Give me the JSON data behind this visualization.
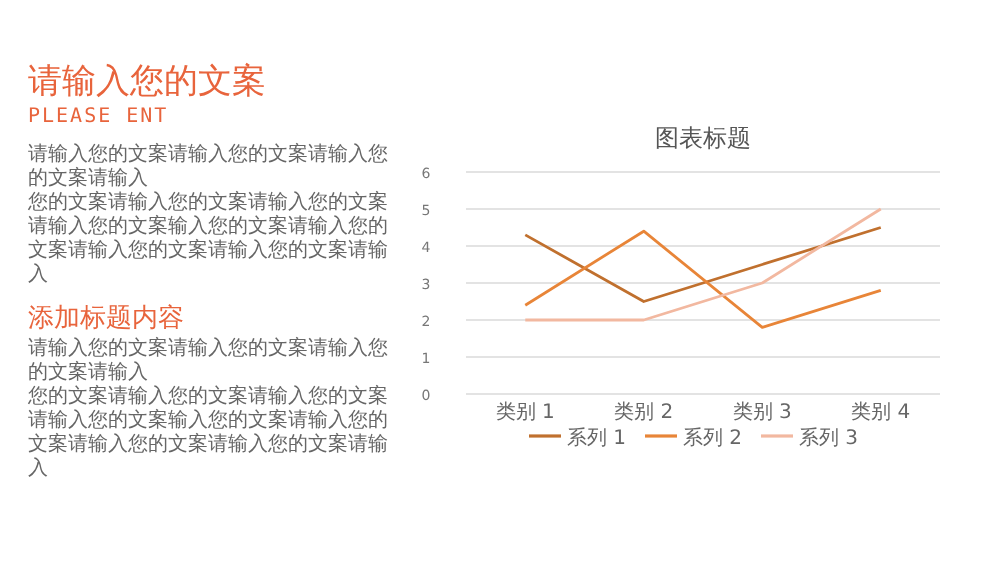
{
  "chart_data": [
    {
      "type": "other",
      "title": "请输入您的文案",
      "subtitle": "PLEASE ENT",
      "annotations": [
        "请输入您的文案请输入您的文案请输入您的文案请输入",
        "您的文案请输入您的文案请输入您的文案请输入您的文案输入您的文案请输入您的文案请输入您的文案请输入您的文案请输入",
        "添加标题内容",
        "请输入您的文案请输入您的文案请输入您的文案请输入",
        "您的文案请输入您的文案请输入您的文案请输入您的文案输入您的文案请输入您的文案请输入您的文案请输入您的文案请输入"
      ]
    },
    {
      "type": "line",
      "title": "图表标题",
      "categories": [
        "类别 1",
        "类别 2",
        "类别 3",
        "类别 4"
      ],
      "series": [
        {
          "name": "系列 1",
          "color": "#c0702e",
          "values": [
            4.3,
            2.5,
            3.5,
            4.5
          ]
        },
        {
          "name": "系列 2",
          "color": "#e88538",
          "values": [
            2.4,
            4.4,
            1.8,
            2.8
          ]
        },
        {
          "name": "系列 3",
          "color": "#f2b8a0",
          "values": [
            2,
            2,
            3,
            5
          ]
        }
      ],
      "ylim": [
        0,
        6
      ],
      "yticks": [
        0,
        1,
        2,
        3,
        4,
        5,
        6
      ],
      "grid": "y",
      "legend": "bottom"
    }
  ]
}
